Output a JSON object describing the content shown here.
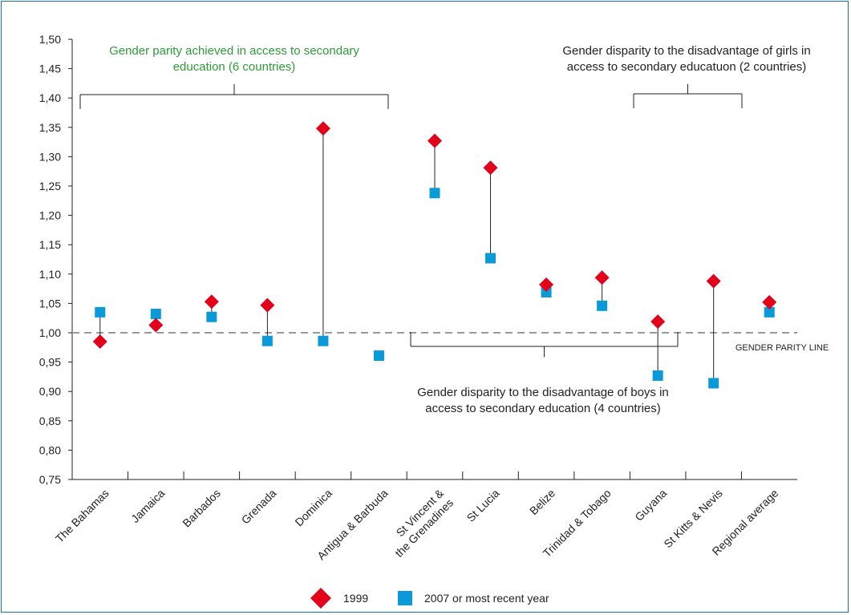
{
  "chart_data": {
    "type": "scatter",
    "categories": [
      "The Bahamas",
      "Jamaica",
      "Barbados",
      "Grenada",
      "Dominica",
      "Antigua & Barbuda",
      "St Vincent & the Grenadines",
      "St Lucia",
      "Belize",
      "Trinidad & Tobago",
      "Guyana",
      "St Kitts & Nevis",
      "Regional average"
    ],
    "category_lines": [
      [
        "The Bahamas"
      ],
      [
        "Jamaica"
      ],
      [
        "Barbados"
      ],
      [
        "Grenada"
      ],
      [
        "Dominica"
      ],
      [
        "Antigua & Barbuda"
      ],
      [
        "St Vincent &",
        "the Grenadines"
      ],
      [
        "St Lucia"
      ],
      [
        "Belize"
      ],
      [
        "Trinidad & Tobago"
      ],
      [
        "Guyana"
      ],
      [
        "St Kitts & Nevis"
      ],
      [
        "Regional average"
      ]
    ],
    "series": [
      {
        "name": "1999",
        "color": "#e2001a",
        "marker": "diamond",
        "values": [
          0.985,
          1.013,
          1.053,
          1.047,
          1.348,
          null,
          1.327,
          1.281,
          1.082,
          1.094,
          1.019,
          1.088,
          1.052
        ]
      },
      {
        "name": "2007 or most recent year",
        "color": "#0a9ad7",
        "marker": "square",
        "values": [
          1.035,
          1.032,
          1.027,
          0.986,
          0.986,
          0.961,
          1.238,
          1.127,
          1.069,
          1.046,
          0.927,
          0.914,
          1.035
        ]
      }
    ],
    "ylim": [
      0.75,
      1.5
    ],
    "yticks": [
      "0,75",
      "0,80",
      "0,85",
      "0,90",
      "0,95",
      "1,00",
      "1,05",
      "1,10",
      "1,15",
      "1,20",
      "1,25",
      "1,30",
      "1,35",
      "1,40",
      "1,45",
      "1,50"
    ],
    "reference_line": {
      "value": 1.0,
      "label": "GENDER PARITY LINE"
    },
    "annotations": [
      {
        "lines": [
          "Gender parity achieved in access to secondary",
          "education (6 countries)"
        ],
        "color": "#2e9a3a"
      },
      {
        "lines": [
          "Gender disparity to the disadvantage of girls in",
          "access to secondary educatuon (2 countries)"
        ],
        "color": "#222222"
      },
      {
        "lines": [
          "Gender disparity to the disadvantage of boys in",
          "access to secondary education (4 countries)"
        ],
        "color": "#222222"
      }
    ],
    "legend_position": "bottom-center",
    "grid": false
  }
}
